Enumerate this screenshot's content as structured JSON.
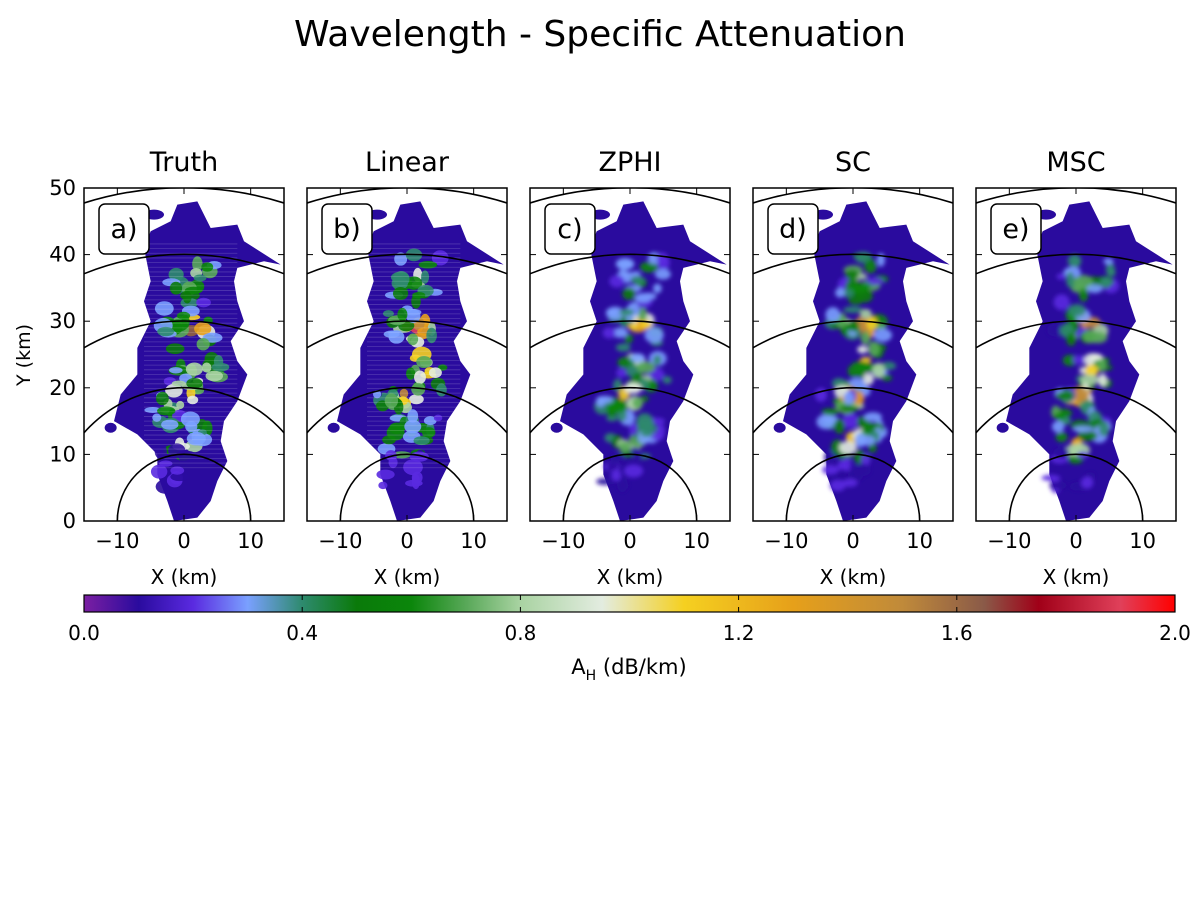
{
  "chart_data": {
    "type": "heatmap",
    "title": "Wavelength - Specific Attenuation",
    "ylabel": "Y (km)",
    "xlabel": "X (km)",
    "xlim": [
      -15,
      15
    ],
    "ylim": [
      0,
      50
    ],
    "xticks": [
      "−10",
      "0",
      "10"
    ],
    "yticks": [
      "0",
      "10",
      "20",
      "30",
      "40",
      "50"
    ],
    "range_rings_km": [
      10,
      20,
      30,
      40,
      50
    ],
    "grid": false,
    "panels": [
      {
        "title": "Truth",
        "label": "a)"
      },
      {
        "title": "Linear",
        "label": "b)"
      },
      {
        "title": "ZPHI",
        "label": "c)"
      },
      {
        "title": "SC",
        "label": "d)"
      },
      {
        "title": "MSC",
        "label": "e)"
      }
    ],
    "colorbar": {
      "label_main": "A",
      "label_sub": "H",
      "label_unit": " (dB/km)",
      "range": [
        0,
        2
      ],
      "ticks": [
        "0.0",
        "0.4",
        "0.8",
        "1.2",
        "1.6",
        "2.0"
      ],
      "stops": [
        {
          "v": 0.0,
          "color": "#7b1fa2"
        },
        {
          "v": 0.1,
          "color": "#2a0b9e"
        },
        {
          "v": 0.2,
          "color": "#5a2ae0"
        },
        {
          "v": 0.3,
          "color": "#7aa0ff"
        },
        {
          "v": 0.4,
          "color": "#2e8a6e"
        },
        {
          "v": 0.5,
          "color": "#0a7a0a"
        },
        {
          "v": 0.6,
          "color": "#0b860b"
        },
        {
          "v": 0.7,
          "color": "#58a858"
        },
        {
          "v": 0.8,
          "color": "#a9d3a2"
        },
        {
          "v": 0.95,
          "color": "#e3ece0"
        },
        {
          "v": 1.1,
          "color": "#f5d020"
        },
        {
          "v": 1.3,
          "color": "#e6a01a"
        },
        {
          "v": 1.5,
          "color": "#c08a3a"
        },
        {
          "v": 1.65,
          "color": "#8a5a48"
        },
        {
          "v": 1.75,
          "color": "#a00018"
        },
        {
          "v": 1.9,
          "color": "#e0405a"
        },
        {
          "v": 2.0,
          "color": "#ff0000"
        }
      ]
    }
  }
}
